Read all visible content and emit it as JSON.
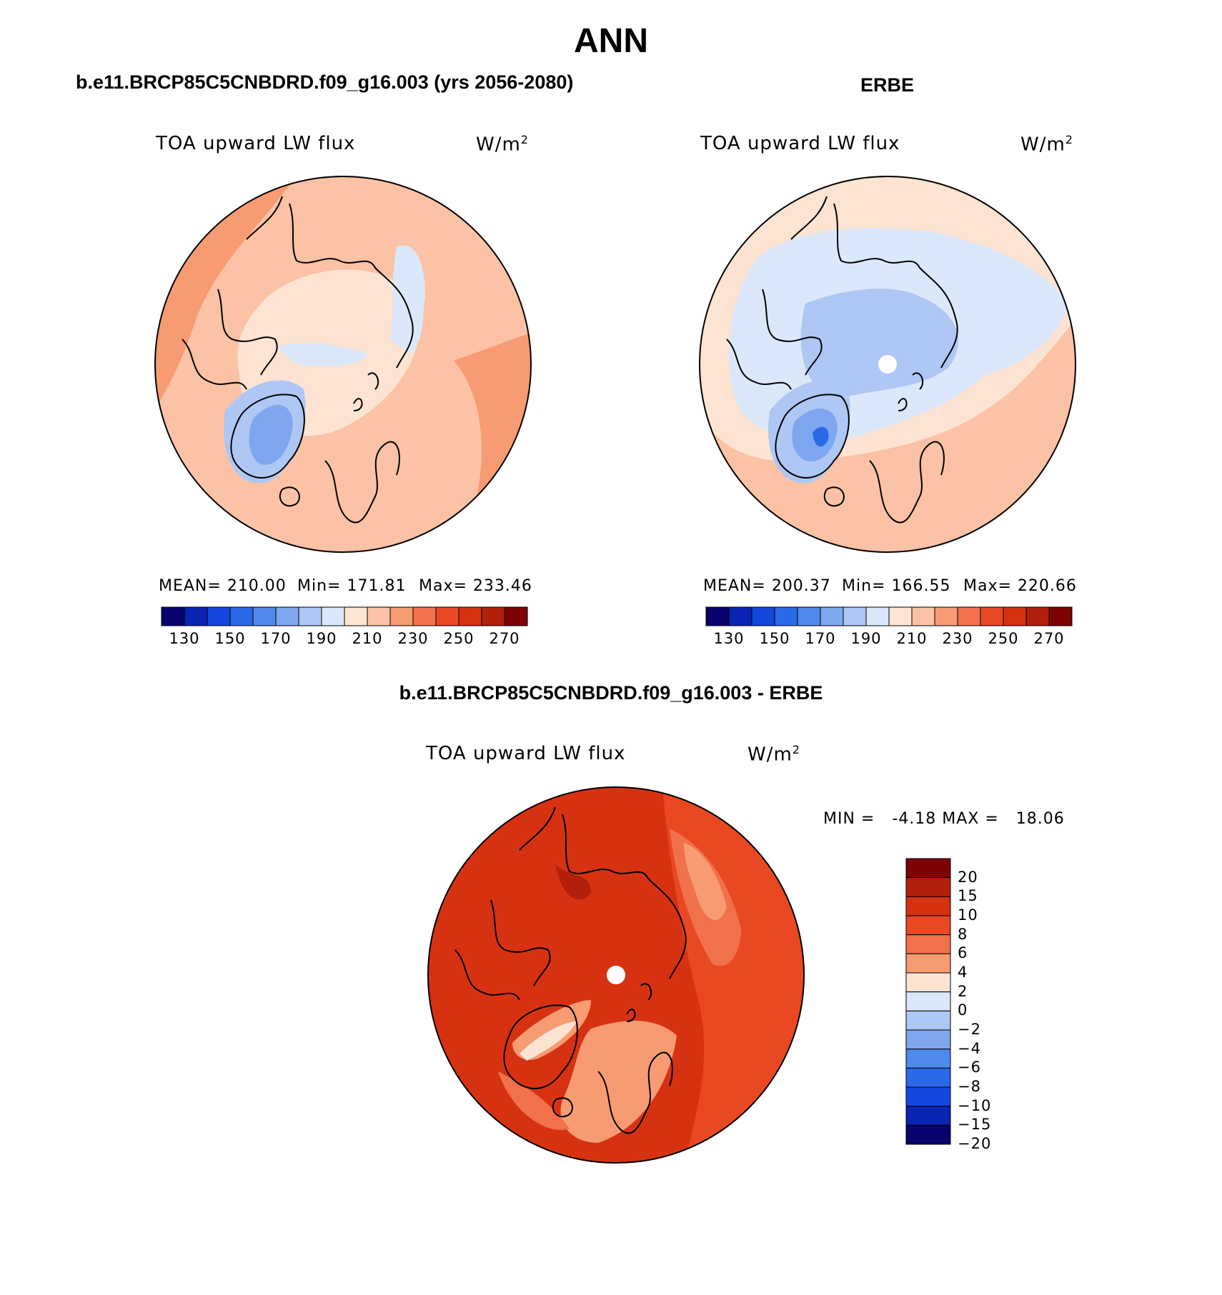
{
  "title": "ANN",
  "colors": {
    "cbar_abs": [
      "#08036e",
      "#0a24b3",
      "#1447de",
      "#2a6ae8",
      "#4f89eb",
      "#7ea7ef",
      "#aec7f4",
      "#dbe8fb",
      "#fde3d2",
      "#fbc2a6",
      "#f79b73",
      "#f0714a",
      "#e84822",
      "#d63212",
      "#b21f0a",
      "#7d0303"
    ],
    "cbar_diff": [
      "#7d0303",
      "#b21f0a",
      "#d63212",
      "#e84822",
      "#f0714a",
      "#f79b73",
      "#fde3d2",
      "#dbe8fb",
      "#aec7f4",
      "#7ea7ef",
      "#4f89eb",
      "#2a6ae8",
      "#1447de",
      "#0a24b3",
      "#08036e"
    ],
    "coast": "#000000"
  },
  "panels": {
    "model": {
      "title": "b.e11.BRCP85C5CNBDRD.f09_g16.003 (yrs 2056-2080)",
      "variable": "TOA upward LW flux",
      "units": "W/m",
      "units_sup": "2",
      "mean": "MEAN= 210.00",
      "min": "Min= 171.81",
      "max": "Max= 233.46",
      "tick_labels": [
        "130",
        "150",
        "170",
        "190",
        "210",
        "230",
        "250",
        "270"
      ]
    },
    "obs": {
      "title": "ERBE",
      "variable": "TOA upward LW flux",
      "units": "W/m",
      "units_sup": "2",
      "mean": "MEAN= 200.37",
      "min": "Min= 166.55",
      "max": "Max= 220.66",
      "tick_labels": [
        "130",
        "150",
        "170",
        "190",
        "210",
        "230",
        "250",
        "270"
      ]
    },
    "diff": {
      "title": "b.e11.BRCP85C5CNBDRD.f09_g16.003 - ERBE",
      "variable": "TOA upward LW flux",
      "units": "W/m",
      "units_sup": "2",
      "minmax": "MIN =   -4.18 MAX =   18.06",
      "tick_labels": [
        "20",
        "15",
        "10",
        "8",
        "6",
        "4",
        "2",
        "0",
        "−2",
        "−4",
        "−6",
        "−8",
        "−10",
        "−15",
        "−20"
      ]
    }
  }
}
